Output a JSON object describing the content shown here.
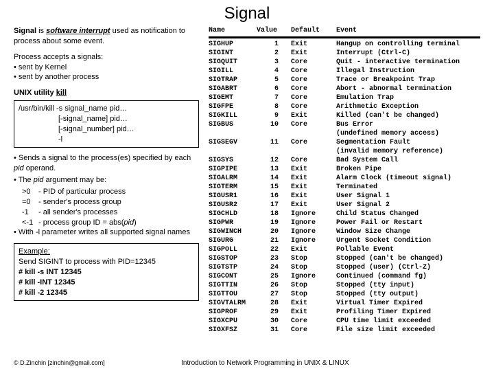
{
  "title": "Signal",
  "intro_bold": "Signal",
  "intro_rest1": " is ",
  "intro_sw": "software interrupt",
  "intro_rest2": " used as notification to process about some event.",
  "accepts_h": "Process accepts a signals:",
  "bullet1": "• sent by Kernel",
  "bullet2": "• sent by another process",
  "unix_label": "UNIX utility ",
  "unix_kill": "kill",
  "killbox_l1": "/usr/bin/kill -s signal_name pid…",
  "killbox_l2": "[-signal_name] pid…",
  "killbox_l3": "[-signal_number] pid…",
  "killbox_l4": "-l",
  "desc1a": "• Sends a signal to the process(es) specified by each ",
  "desc1b": "pid",
  "desc1c": " operand.",
  "desc2a": "• The ",
  "desc2b": "pid",
  "desc2c": " argument may be:",
  "pid_rows": [
    {
      "a": ">0",
      "b": "- PID of particular process"
    },
    {
      "a": "=0",
      "b": "- sender's process group"
    },
    {
      "a": "-1",
      "b": "- all sender's processes"
    },
    {
      "a": "<-1",
      "b": "- process group ID = abs("
    }
  ],
  "pid_last_em": "pid",
  "pid_last_close": ")",
  "desc3": "• With -l parameter writes all supported signal names",
  "ex_h": "Example:",
  "ex_txt": "Send SIGINT to process with PID=12345",
  "ex_c1": "# kill -s INT 12345",
  "ex_c2": "# kill -INT 12345",
  "ex_c3": "# kill -2  12345",
  "hdr_name": "Name",
  "hdr_val": "Value",
  "hdr_def": "Default",
  "hdr_ev": "Event",
  "signals": [
    {
      "n": "SIGHUP",
      "v": "1",
      "d": "Exit",
      "e": "Hangup on controlling terminal"
    },
    {
      "n": "SIGINT",
      "v": "2",
      "d": "Exit",
      "e": "Interrupt (Ctrl-C)"
    },
    {
      "n": "SIGQUIT",
      "v": "3",
      "d": "Core",
      "e": "Quit - interactive termination"
    },
    {
      "n": "SIGILL",
      "v": "4",
      "d": "Core",
      "e": "Illegal Instruction"
    },
    {
      "n": "SIGTRAP",
      "v": "5",
      "d": "Core",
      "e": "Trace or Breakpoint Trap"
    },
    {
      "n": "SIGABRT",
      "v": "6",
      "d": "Core",
      "e": "Abort - abnormal termination"
    },
    {
      "n": "SIGEMT",
      "v": "7",
      "d": "Core",
      "e": "Emulation Trap"
    },
    {
      "n": "SIGFPE",
      "v": "8",
      "d": "Core",
      "e": "Arithmetic Exception"
    },
    {
      "n": "SIGKILL",
      "v": "9",
      "d": "Exit",
      "e": "Killed (can't be changed)"
    },
    {
      "n": "SIGBUS",
      "v": "10",
      "d": "Core",
      "e": "Bus Error"
    },
    {
      "n": "",
      "v": "",
      "d": "",
      "e": "(undefined memory access)",
      "sub": true
    },
    {
      "n": "SIGSEGV",
      "v": "11",
      "d": "Core",
      "e": "Segmentation Fault"
    },
    {
      "n": "",
      "v": "",
      "d": "",
      "e": "(invalid memory reference)",
      "sub": true
    },
    {
      "n": "SIGSYS",
      "v": "12",
      "d": "Core",
      "e": "Bad System Call"
    },
    {
      "n": "SIGPIPE",
      "v": "13",
      "d": "Exit",
      "e": "Broken Pipe"
    },
    {
      "n": "SIGALRM",
      "v": "14",
      "d": "Exit",
      "e": "Alarm Clock (timeout signal)"
    },
    {
      "n": "SIGTERM",
      "v": "15",
      "d": "Exit",
      "e": "Terminated"
    },
    {
      "n": "SIGUSR1",
      "v": "16",
      "d": "Exit",
      "e": "User Signal 1"
    },
    {
      "n": "SIGUSR2",
      "v": "17",
      "d": "Exit",
      "e": "User Signal 2"
    },
    {
      "n": "SIGCHLD",
      "v": "18",
      "d": "Ignore",
      "e": "Child Status Changed"
    },
    {
      "n": "SIGPWR",
      "v": "19",
      "d": "Ignore",
      "e": "Power Fail or Restart"
    },
    {
      "n": "SIGWINCH",
      "v": "20",
      "d": "Ignore",
      "e": "Window Size Change"
    },
    {
      "n": "SIGURG",
      "v": "21",
      "d": "Ignore",
      "e": "Urgent Socket Condition"
    },
    {
      "n": "SIGPOLL",
      "v": "22",
      "d": "Exit",
      "e": "Pollable Event"
    },
    {
      "n": "SIGSTOP",
      "v": "23",
      "d": "Stop",
      "e": "Stopped (can't be changed)"
    },
    {
      "n": "SIGTSTP",
      "v": "24",
      "d": "Stop",
      "e": "Stopped (user) (Ctrl-Z)"
    },
    {
      "n": "SIGCONT",
      "v": "25",
      "d": "Ignore",
      "e": "Continued (command fg)"
    },
    {
      "n": "SIGTTIN",
      "v": "26",
      "d": "Stop",
      "e": "Stopped (tty input)"
    },
    {
      "n": "SIGTTOU",
      "v": "27",
      "d": "Stop",
      "e": "Stopped (tty output)"
    },
    {
      "n": "SIGVTALRM",
      "v": "28",
      "d": "Exit",
      "e": "Virtual Timer Expired"
    },
    {
      "n": "SIGPROF",
      "v": "29",
      "d": "Exit",
      "e": "Profiling Timer Expired"
    },
    {
      "n": "SIGXCPU",
      "v": "30",
      "d": "Core",
      "e": "CPU   time   limit   exceeded"
    },
    {
      "n": "SIGXFSZ",
      "v": "31",
      "d": "Core",
      "e": "File   size   limit   exceeded"
    }
  ],
  "footer_left": "© D.Zinchin [zinchin@gmail.com]",
  "footer_mid": "Introduction to Network Programming in UNIX & LINUX"
}
